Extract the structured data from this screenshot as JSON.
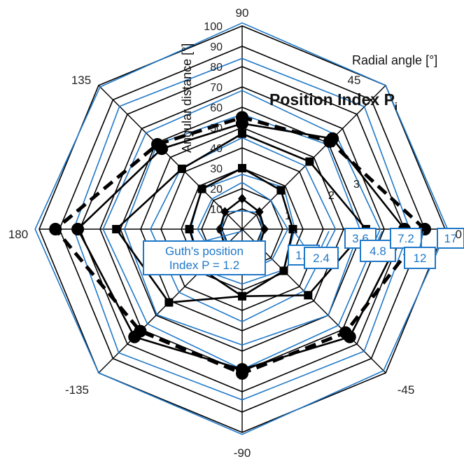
{
  "chart_data": {
    "type": "radar",
    "title": "Position Index P",
    "title_subscript": "i",
    "radial_axis_label": "Angular distance [°]",
    "angular_axis_label": "Radial angle [°]",
    "angle_ticks": [
      0,
      45,
      90,
      135,
      180,
      -135,
      -90,
      -45
    ],
    "angle_tick_labels": [
      "0",
      "45",
      "90",
      "135",
      "180",
      "-135",
      "-90",
      "-45"
    ],
    "radial_ticks": [
      0,
      10,
      20,
      30,
      40,
      50,
      60,
      70,
      80,
      90,
      100
    ],
    "radial_tick_labels": [
      "0",
      "10",
      "20",
      "30",
      "40",
      "50",
      "60",
      "70",
      "80",
      "90",
      "100"
    ],
    "rlim": [
      0,
      100
    ],
    "grid": "octagonal",
    "inner_scale_labels": [
      "1",
      "2",
      "3"
    ],
    "series": [
      {
        "values": [
          {
            "angle": 0,
            "r": 11
          },
          {
            "angle": 45,
            "r": 12
          },
          {
            "angle": 90,
            "r": 15
          },
          {
            "angle": 135,
            "r": 12
          },
          {
            "angle": 180,
            "r": 11
          },
          {
            "angle": -135,
            "r": 12
          },
          {
            "angle": -90,
            "r": 15
          },
          {
            "angle": -45,
            "r": 12
          }
        ],
        "marker": "diamond",
        "style": "solid",
        "color": "#000000"
      },
      {
        "values": [
          {
            "angle": 0,
            "r": 25
          },
          {
            "angle": 45,
            "r": 27
          },
          {
            "angle": 90,
            "r": 30
          },
          {
            "angle": 135,
            "r": 28
          },
          {
            "angle": 180,
            "r": 26
          },
          {
            "angle": -135,
            "r": 28
          },
          {
            "angle": -90,
            "r": 33
          },
          {
            "angle": -45,
            "r": 29
          }
        ],
        "marker": "square",
        "style": "solid",
        "color": "#000000"
      },
      {
        "values": [
          {
            "angle": 0,
            "r": 61
          },
          {
            "angle": 45,
            "r": 47
          },
          {
            "angle": 90,
            "r": 47
          },
          {
            "angle": 135,
            "r": 42
          },
          {
            "angle": 180,
            "r": 62
          },
          {
            "angle": -135,
            "r": 51
          },
          {
            "angle": -90,
            "r": 33
          },
          {
            "angle": -45,
            "r": 46
          }
        ],
        "marker": "square",
        "style": "solid",
        "color": "#000000"
      },
      {
        "values": [
          {
            "angle": 0,
            "r": 80
          },
          {
            "angle": 45,
            "r": 63
          },
          {
            "angle": 90,
            "r": 52
          },
          {
            "angle": 135,
            "r": 56
          },
          {
            "angle": 180,
            "r": 81
          },
          {
            "angle": -135,
            "r": 75
          },
          {
            "angle": -90,
            "r": 69
          },
          {
            "angle": -45,
            "r": 75
          }
        ],
        "marker": "circle",
        "style": "solid",
        "color": "#000000"
      },
      {
        "values": [
          {
            "angle": 0,
            "r": 90
          },
          {
            "angle": 45,
            "r": 61
          },
          {
            "angle": 90,
            "r": 55
          },
          {
            "angle": 135,
            "r": 59
          },
          {
            "angle": 180,
            "r": 92
          },
          {
            "angle": -135,
            "r": 71
          },
          {
            "angle": -90,
            "r": 71
          },
          {
            "angle": -45,
            "r": 72
          }
        ],
        "marker": "circle",
        "style": "dashed",
        "color": "#000000"
      }
    ],
    "callouts": [
      {
        "label": "Guth's position",
        "label2": "Index P = 1.2",
        "target": "lowest"
      },
      {
        "label": "1.8"
      },
      {
        "label": "2.4"
      },
      {
        "label": "3.6"
      },
      {
        "label": "4.8"
      },
      {
        "label": "7.2"
      },
      {
        "label": "12"
      },
      {
        "label": "17"
      }
    ],
    "isoline_color": "#1f78c8",
    "axis_color": "#000000"
  }
}
